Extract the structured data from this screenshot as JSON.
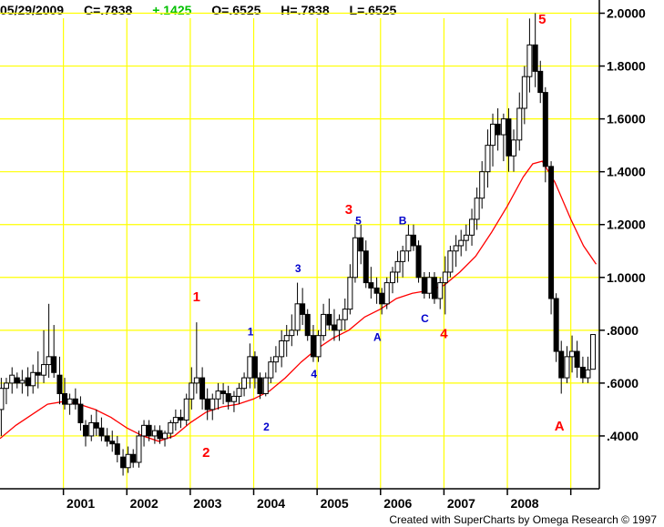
{
  "header": {
    "date": "05/29/2009",
    "close": "C=.7838",
    "change": "+.1425",
    "open": "O=.6525",
    "high": "H=.7838",
    "low": "L=.6525"
  },
  "footer": "Created with SuperCharts by Omega Research © 1997",
  "colors": {
    "grid": "#ffff00",
    "moving_average": "#ff0000",
    "change": "#00c000",
    "red_label": "#ff0000",
    "blue_label": "#0000cc"
  },
  "chart_data": {
    "type": "candlestick",
    "title": "",
    "xlabel": "",
    "ylabel": "",
    "ylim": [
      0.2,
      2.05
    ],
    "x_range": [
      2000.0,
      2009.45
    ],
    "grid": true,
    "y_ticks": [
      {
        "value": 0.4,
        "label": ".4000"
      },
      {
        "value": 0.6,
        "label": ".6000"
      },
      {
        "value": 0.8,
        "label": ".8000"
      },
      {
        "value": 1.0,
        "label": "1.0000"
      },
      {
        "value": 1.2,
        "label": "1.2000"
      },
      {
        "value": 1.4,
        "label": "1.4000"
      },
      {
        "value": 1.6,
        "label": "1.6000"
      },
      {
        "value": 1.8,
        "label": "1.8000"
      },
      {
        "value": 2.0,
        "label": "2.0000"
      }
    ],
    "x_ticks": [
      {
        "value": 2001,
        "label": "2001"
      },
      {
        "value": 2002,
        "label": "2002"
      },
      {
        "value": 2003,
        "label": "2003"
      },
      {
        "value": 2004,
        "label": "2004"
      },
      {
        "value": 2005,
        "label": "2005"
      },
      {
        "value": 2006,
        "label": "2006"
      },
      {
        "value": 2007,
        "label": "2007"
      },
      {
        "value": 2008,
        "label": "2008"
      },
      {
        "value": 2009,
        "label": ""
      }
    ],
    "candles": [
      [
        2000.02,
        0.5,
        0.62,
        0.4,
        0.58
      ],
      [
        2000.1,
        0.58,
        0.62,
        0.52,
        0.6
      ],
      [
        2000.19,
        0.6,
        0.66,
        0.56,
        0.63
      ],
      [
        2000.27,
        0.62,
        0.64,
        0.58,
        0.6
      ],
      [
        2000.35,
        0.6,
        0.65,
        0.56,
        0.61
      ],
      [
        2000.44,
        0.62,
        0.66,
        0.55,
        0.59
      ],
      [
        2000.52,
        0.59,
        0.67,
        0.56,
        0.64
      ],
      [
        2000.6,
        0.64,
        0.72,
        0.58,
        0.63
      ],
      [
        2000.69,
        0.63,
        0.8,
        0.6,
        0.67
      ],
      [
        2000.77,
        0.67,
        0.9,
        0.62,
        0.7
      ],
      [
        2000.85,
        0.7,
        0.82,
        0.62,
        0.64
      ],
      [
        2000.94,
        0.63,
        0.7,
        0.52,
        0.56
      ],
      [
        2001.02,
        0.56,
        0.62,
        0.5,
        0.52
      ],
      [
        2001.1,
        0.52,
        0.56,
        0.48,
        0.54
      ],
      [
        2001.19,
        0.54,
        0.58,
        0.5,
        0.52
      ],
      [
        2001.27,
        0.52,
        0.55,
        0.42,
        0.45
      ],
      [
        2001.35,
        0.44,
        0.46,
        0.36,
        0.4
      ],
      [
        2001.44,
        0.4,
        0.48,
        0.38,
        0.45
      ],
      [
        2001.52,
        0.45,
        0.5,
        0.4,
        0.43
      ],
      [
        2001.6,
        0.43,
        0.47,
        0.38,
        0.4
      ],
      [
        2001.69,
        0.4,
        0.43,
        0.36,
        0.38
      ],
      [
        2001.77,
        0.38,
        0.42,
        0.34,
        0.37
      ],
      [
        2001.85,
        0.37,
        0.4,
        0.3,
        0.33
      ],
      [
        2001.94,
        0.32,
        0.35,
        0.25,
        0.28
      ],
      [
        2002.02,
        0.28,
        0.36,
        0.26,
        0.33
      ],
      [
        2002.1,
        0.33,
        0.35,
        0.28,
        0.3
      ],
      [
        2002.19,
        0.3,
        0.42,
        0.28,
        0.4
      ],
      [
        2002.27,
        0.4,
        0.46,
        0.36,
        0.44
      ],
      [
        2002.35,
        0.44,
        0.46,
        0.38,
        0.4
      ],
      [
        2002.44,
        0.4,
        0.44,
        0.37,
        0.42
      ],
      [
        2002.52,
        0.42,
        0.44,
        0.37,
        0.39
      ],
      [
        2002.6,
        0.39,
        0.42,
        0.36,
        0.41
      ],
      [
        2002.69,
        0.41,
        0.46,
        0.39,
        0.45
      ],
      [
        2002.77,
        0.45,
        0.5,
        0.42,
        0.47
      ],
      [
        2002.85,
        0.47,
        0.5,
        0.43,
        0.46
      ],
      [
        2002.94,
        0.46,
        0.56,
        0.44,
        0.54
      ],
      [
        2003.02,
        0.54,
        0.66,
        0.5,
        0.6
      ],
      [
        2003.1,
        0.6,
        0.83,
        0.56,
        0.62
      ],
      [
        2003.19,
        0.62,
        0.66,
        0.5,
        0.54
      ],
      [
        2003.27,
        0.54,
        0.58,
        0.46,
        0.5
      ],
      [
        2003.35,
        0.5,
        0.56,
        0.46,
        0.54
      ],
      [
        2003.44,
        0.54,
        0.6,
        0.5,
        0.57
      ],
      [
        2003.52,
        0.57,
        0.6,
        0.52,
        0.56
      ],
      [
        2003.6,
        0.56,
        0.59,
        0.5,
        0.53
      ],
      [
        2003.69,
        0.53,
        0.57,
        0.49,
        0.55
      ],
      [
        2003.77,
        0.55,
        0.6,
        0.52,
        0.58
      ],
      [
        2003.85,
        0.58,
        0.64,
        0.55,
        0.62
      ],
      [
        2003.94,
        0.62,
        0.75,
        0.58,
        0.7
      ],
      [
        2004.02,
        0.7,
        0.72,
        0.58,
        0.62
      ],
      [
        2004.1,
        0.62,
        0.64,
        0.54,
        0.56
      ],
      [
        2004.19,
        0.56,
        0.64,
        0.55,
        0.62
      ],
      [
        2004.27,
        0.62,
        0.7,
        0.6,
        0.68
      ],
      [
        2004.35,
        0.68,
        0.74,
        0.64,
        0.7
      ],
      [
        2004.44,
        0.7,
        0.8,
        0.66,
        0.76
      ],
      [
        2004.52,
        0.76,
        0.82,
        0.7,
        0.78
      ],
      [
        2004.6,
        0.78,
        0.86,
        0.74,
        0.8
      ],
      [
        2004.69,
        0.8,
        0.98,
        0.78,
        0.9
      ],
      [
        2004.77,
        0.9,
        0.96,
        0.82,
        0.86
      ],
      [
        2004.85,
        0.86,
        0.88,
        0.76,
        0.78
      ],
      [
        2004.94,
        0.78,
        0.82,
        0.68,
        0.7
      ],
      [
        2005.02,
        0.7,
        0.8,
        0.68,
        0.78
      ],
      [
        2005.1,
        0.78,
        0.9,
        0.76,
        0.86
      ],
      [
        2005.19,
        0.86,
        0.92,
        0.8,
        0.82
      ],
      [
        2005.27,
        0.82,
        0.88,
        0.76,
        0.8
      ],
      [
        2005.35,
        0.8,
        0.86,
        0.76,
        0.84
      ],
      [
        2005.44,
        0.84,
        0.92,
        0.8,
        0.88
      ],
      [
        2005.52,
        0.88,
        1.05,
        0.86,
        1.0
      ],
      [
        2005.6,
        1.0,
        1.2,
        0.98,
        1.15
      ],
      [
        2005.69,
        1.15,
        1.2,
        1.05,
        1.1
      ],
      [
        2005.77,
        1.1,
        1.14,
        0.96,
        0.98
      ],
      [
        2005.85,
        0.98,
        1.04,
        0.92,
        0.96
      ],
      [
        2005.94,
        0.96,
        1.0,
        0.9,
        0.94
      ],
      [
        2006.02,
        0.94,
        0.96,
        0.86,
        0.9
      ],
      [
        2006.1,
        0.9,
        1.0,
        0.88,
        0.98
      ],
      [
        2006.19,
        0.98,
        1.04,
        0.94,
        1.02
      ],
      [
        2006.27,
        1.02,
        1.1,
        0.98,
        1.06
      ],
      [
        2006.35,
        1.06,
        1.12,
        1.0,
        1.1
      ],
      [
        2006.44,
        1.1,
        1.2,
        1.06,
        1.16
      ],
      [
        2006.52,
        1.16,
        1.2,
        1.1,
        1.12
      ],
      [
        2006.6,
        1.12,
        1.14,
        0.98,
        1.0
      ],
      [
        2006.69,
        1.0,
        1.02,
        0.92,
        0.94
      ],
      [
        2006.77,
        0.94,
        1.02,
        0.92,
        1.0
      ],
      [
        2006.85,
        1.0,
        1.02,
        0.9,
        0.92
      ],
      [
        2006.94,
        0.92,
        1.0,
        0.88,
        0.98
      ],
      [
        2007.02,
        0.98,
        1.08,
        0.86,
        1.02
      ],
      [
        2007.1,
        1.02,
        1.12,
        1.0,
        1.1
      ],
      [
        2007.19,
        1.1,
        1.16,
        1.04,
        1.12
      ],
      [
        2007.27,
        1.12,
        1.18,
        1.08,
        1.14
      ],
      [
        2007.35,
        1.14,
        1.2,
        1.1,
        1.16
      ],
      [
        2007.44,
        1.16,
        1.26,
        1.12,
        1.22
      ],
      [
        2007.52,
        1.22,
        1.34,
        1.18,
        1.3
      ],
      [
        2007.6,
        1.3,
        1.44,
        1.26,
        1.4
      ],
      [
        2007.69,
        1.4,
        1.56,
        1.34,
        1.5
      ],
      [
        2007.77,
        1.5,
        1.62,
        1.42,
        1.58
      ],
      [
        2007.85,
        1.58,
        1.64,
        1.48,
        1.54
      ],
      [
        2007.94,
        1.54,
        1.62,
        1.44,
        1.6
      ],
      [
        2008.02,
        1.6,
        1.64,
        1.4,
        1.46
      ],
      [
        2008.1,
        1.46,
        1.56,
        1.4,
        1.52
      ],
      [
        2008.19,
        1.52,
        1.7,
        1.48,
        1.64
      ],
      [
        2008.27,
        1.64,
        1.8,
        1.58,
        1.76
      ],
      [
        2008.35,
        1.76,
        1.98,
        1.7,
        1.88
      ],
      [
        2008.44,
        1.88,
        2.0,
        1.72,
        1.78
      ],
      [
        2008.52,
        1.78,
        1.82,
        1.66,
        1.7
      ],
      [
        2008.6,
        1.7,
        1.72,
        1.36,
        1.42
      ],
      [
        2008.69,
        1.42,
        1.44,
        0.86,
        0.92
      ],
      [
        2008.77,
        0.92,
        0.94,
        0.68,
        0.72
      ],
      [
        2008.85,
        0.72,
        0.76,
        0.56,
        0.62
      ],
      [
        2008.94,
        0.62,
        0.74,
        0.6,
        0.7
      ],
      [
        2009.02,
        0.7,
        0.78,
        0.64,
        0.72
      ],
      [
        2009.1,
        0.72,
        0.76,
        0.62,
        0.66
      ],
      [
        2009.19,
        0.66,
        0.7,
        0.6,
        0.62
      ],
      [
        2009.27,
        0.62,
        0.7,
        0.6,
        0.65
      ],
      [
        2009.35,
        0.6525,
        0.7838,
        0.6525,
        0.7838
      ]
    ],
    "moving_average": [
      [
        2000.0,
        0.39
      ],
      [
        2000.25,
        0.44
      ],
      [
        2000.5,
        0.48
      ],
      [
        2000.75,
        0.52
      ],
      [
        2001.0,
        0.53
      ],
      [
        2001.25,
        0.52
      ],
      [
        2001.5,
        0.5
      ],
      [
        2001.75,
        0.47
      ],
      [
        2002.0,
        0.43
      ],
      [
        2002.25,
        0.4
      ],
      [
        2002.5,
        0.38
      ],
      [
        2002.75,
        0.4
      ],
      [
        2003.0,
        0.45
      ],
      [
        2003.25,
        0.49
      ],
      [
        2003.5,
        0.51
      ],
      [
        2003.75,
        0.52
      ],
      [
        2004.0,
        0.54
      ],
      [
        2004.25,
        0.57
      ],
      [
        2004.5,
        0.62
      ],
      [
        2004.75,
        0.68
      ],
      [
        2005.0,
        0.73
      ],
      [
        2005.25,
        0.77
      ],
      [
        2005.5,
        0.8
      ],
      [
        2005.75,
        0.85
      ],
      [
        2006.0,
        0.88
      ],
      [
        2006.25,
        0.92
      ],
      [
        2006.5,
        0.94
      ],
      [
        2006.75,
        0.95
      ],
      [
        2007.0,
        0.97
      ],
      [
        2007.25,
        1.02
      ],
      [
        2007.5,
        1.08
      ],
      [
        2007.75,
        1.17
      ],
      [
        2008.0,
        1.27
      ],
      [
        2008.25,
        1.38
      ],
      [
        2008.4,
        1.43
      ],
      [
        2008.55,
        1.44
      ],
      [
        2008.75,
        1.36
      ],
      [
        2009.0,
        1.22
      ],
      [
        2009.2,
        1.12
      ],
      [
        2009.4,
        1.05
      ]
    ],
    "annotations": [
      {
        "text": "1",
        "x": 2003.1,
        "y": 0.91,
        "color": "red",
        "size": "big"
      },
      {
        "text": "2",
        "x": 2003.25,
        "y": 0.32,
        "color": "red",
        "size": "big"
      },
      {
        "text": "3",
        "x": 2005.5,
        "y": 1.24,
        "color": "red",
        "size": "big"
      },
      {
        "text": "4",
        "x": 2007.0,
        "y": 0.77,
        "color": "red",
        "size": "big"
      },
      {
        "text": "5",
        "x": 2008.55,
        "y": 1.96,
        "color": "red",
        "size": "big"
      },
      {
        "text": "A",
        "x": 2008.82,
        "y": 0.42,
        "color": "red",
        "size": "big"
      },
      {
        "text": "1",
        "x": 2003.95,
        "y": 0.78,
        "color": "blue",
        "size": "small"
      },
      {
        "text": "2",
        "x": 2004.2,
        "y": 0.42,
        "color": "blue",
        "size": "small"
      },
      {
        "text": "3",
        "x": 2004.7,
        "y": 1.02,
        "color": "blue",
        "size": "small"
      },
      {
        "text": "4",
        "x": 2004.95,
        "y": 0.62,
        "color": "blue",
        "size": "small"
      },
      {
        "text": "5",
        "x": 2005.65,
        "y": 1.2,
        "color": "blue",
        "size": "small"
      },
      {
        "text": "A",
        "x": 2005.95,
        "y": 0.76,
        "color": "blue",
        "size": "small"
      },
      {
        "text": "B",
        "x": 2006.35,
        "y": 1.2,
        "color": "blue",
        "size": "small"
      },
      {
        "text": "C",
        "x": 2006.7,
        "y": 0.83,
        "color": "blue",
        "size": "small"
      }
    ]
  }
}
